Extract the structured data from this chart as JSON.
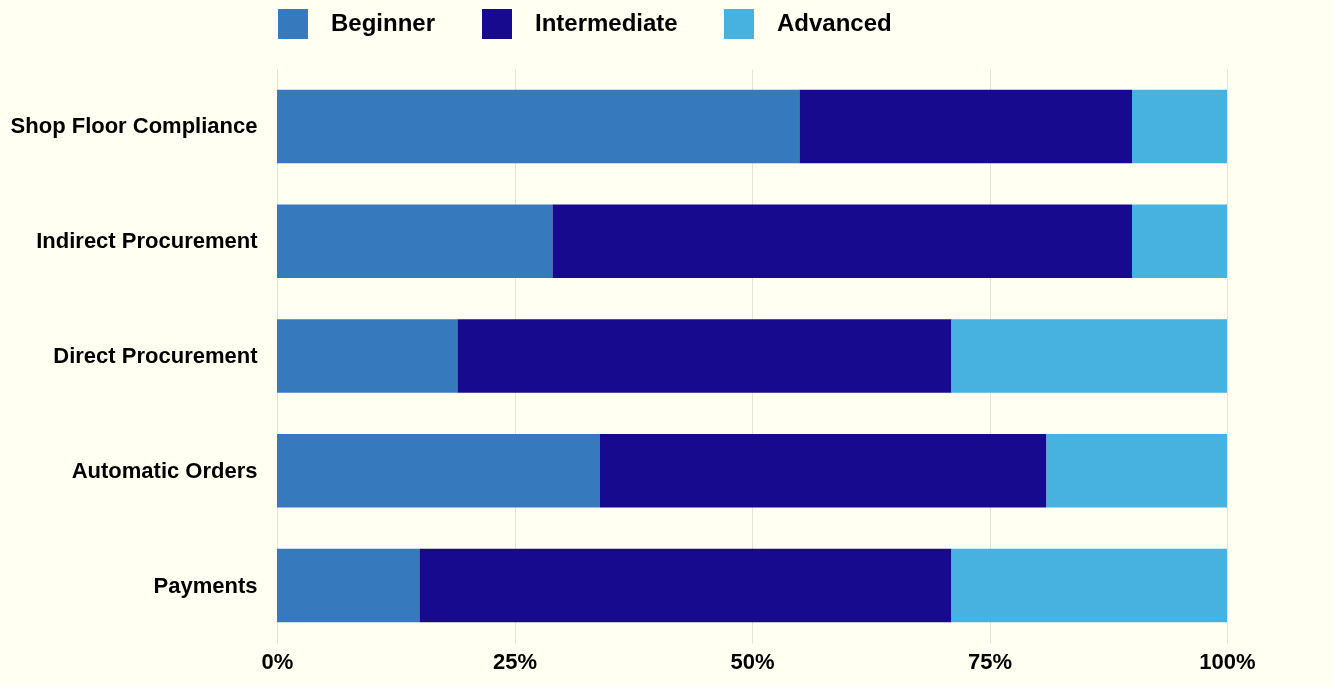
{
  "chart_data": {
    "type": "bar",
    "orientation": "horizontal",
    "stacked": true,
    "categories": [
      "Shop Floor Compliance",
      "Indirect Procurement",
      "Direct Procurement",
      "Automatic Orders",
      "Payments"
    ],
    "series": [
      {
        "name": "Beginner",
        "color": "#3779bd",
        "values": [
          55,
          29,
          19,
          34,
          15
        ]
      },
      {
        "name": "Intermediate",
        "color": "#170a8e",
        "values": [
          35,
          61,
          52,
          47,
          56
        ]
      },
      {
        "name": "Advanced",
        "color": "#47b1df",
        "values": [
          10,
          10,
          29,
          19,
          29
        ]
      }
    ],
    "xlim": [
      0,
      100
    ],
    "xticks": [
      {
        "value": 0,
        "label": "0%"
      },
      {
        "value": 25,
        "label": "25%"
      },
      {
        "value": 50,
        "label": "50%"
      },
      {
        "value": 75,
        "label": "75%"
      },
      {
        "value": 100,
        "label": "100%"
      }
    ],
    "grid": "x",
    "legend": "top"
  }
}
